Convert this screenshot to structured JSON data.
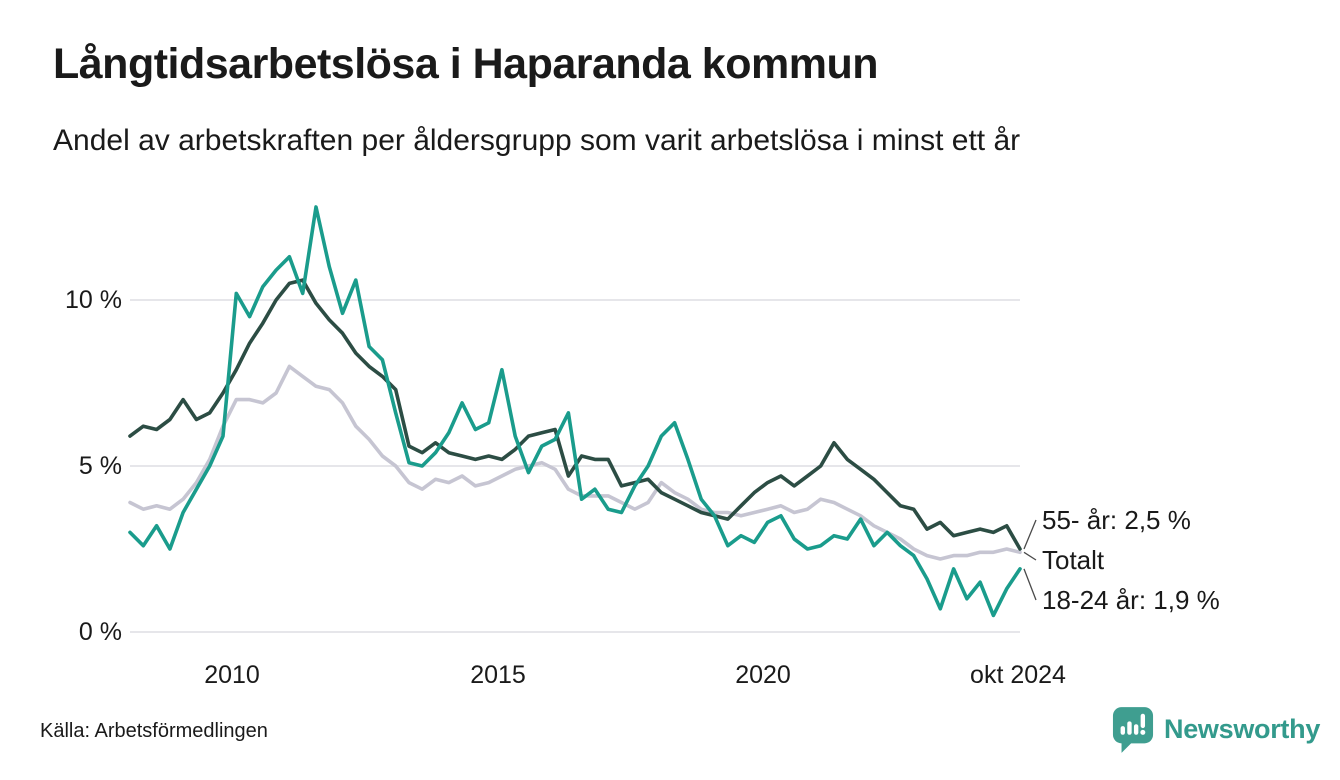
{
  "header": {
    "title": "Långtidsarbetslösa i Haparanda kommun",
    "subtitle": "Andel av arbetskraften per åldersgrupp som varit arbetslösa i minst ett år"
  },
  "chart_data": {
    "type": "line",
    "title": "Långtidsarbetslösa i Haparanda kommun",
    "subtitle": "Andel av arbetskraften per åldersgrupp som varit arbetslösa i minst ett år",
    "x_start_year": 2008.08,
    "x_step_years": 0.25,
    "ylim": [
      0,
      13.5
    ],
    "grid": true,
    "grid_color": "#e6e6ea",
    "leader_line_color": "#4a4a4a",
    "yticks": [
      {
        "label": "10 %",
        "value": 10
      },
      {
        "label": "5 %",
        "value": 5
      },
      {
        "label": "0 %",
        "value": 0
      }
    ],
    "xticks": [
      {
        "label": "2010",
        "year": 2010
      },
      {
        "label": "2015",
        "year": 2015
      },
      {
        "label": "2020",
        "year": 2020
      },
      {
        "label": "okt 2024",
        "year": 2024.79
      }
    ],
    "series": [
      {
        "name": "55- år",
        "end_label": "55- år: 2,5 %",
        "end_value": 2.5,
        "color": "#2c4d44",
        "values": [
          5.9,
          6.2,
          6.1,
          6.4,
          7.0,
          6.4,
          6.6,
          7.2,
          7.9,
          8.7,
          9.3,
          10.0,
          10.5,
          10.6,
          9.9,
          9.4,
          9.0,
          8.4,
          8.0,
          7.7,
          7.3,
          5.6,
          5.4,
          5.7,
          5.4,
          5.3,
          5.2,
          5.3,
          5.2,
          5.5,
          5.9,
          6.0,
          6.1,
          4.7,
          5.3,
          5.2,
          5.2,
          4.4,
          4.5,
          4.6,
          4.2,
          4.0,
          3.8,
          3.6,
          3.5,
          3.4,
          3.8,
          4.2,
          4.5,
          4.7,
          4.4,
          4.7,
          5.0,
          5.7,
          5.2,
          4.9,
          4.6,
          4.2,
          3.8,
          3.7,
          3.1,
          3.3,
          2.9,
          3.0,
          3.1,
          3.0,
          3.2,
          2.5
        ]
      },
      {
        "name": "Totalt",
        "end_label": "Totalt",
        "end_value": 2.4,
        "color": "#c6c5d2",
        "values": [
          3.9,
          3.7,
          3.8,
          3.7,
          4.0,
          4.5,
          5.2,
          6.2,
          7.0,
          7.0,
          6.9,
          7.2,
          8.0,
          7.7,
          7.4,
          7.3,
          6.9,
          6.2,
          5.8,
          5.3,
          5.0,
          4.5,
          4.3,
          4.6,
          4.5,
          4.7,
          4.4,
          4.5,
          4.7,
          4.9,
          5.0,
          5.1,
          4.9,
          4.3,
          4.1,
          4.1,
          4.1,
          3.9,
          3.7,
          3.9,
          4.5,
          4.2,
          4.0,
          3.7,
          3.6,
          3.6,
          3.5,
          3.6,
          3.7,
          3.8,
          3.6,
          3.7,
          4.0,
          3.9,
          3.7,
          3.5,
          3.2,
          3.0,
          2.8,
          2.5,
          2.3,
          2.2,
          2.3,
          2.3,
          2.4,
          2.4,
          2.5,
          2.4
        ]
      },
      {
        "name": "18-24 år",
        "end_label": "18-24 år: 1,9 %",
        "end_value": 1.9,
        "color": "#1a9c8c",
        "values": [
          3.0,
          2.6,
          3.2,
          2.5,
          3.6,
          4.3,
          5.0,
          5.9,
          10.2,
          9.5,
          10.4,
          10.9,
          11.3,
          10.2,
          12.8,
          11.0,
          9.6,
          10.6,
          8.6,
          8.2,
          6.6,
          5.1,
          5.0,
          5.4,
          6.0,
          6.9,
          6.1,
          6.3,
          7.9,
          5.9,
          4.8,
          5.6,
          5.8,
          6.6,
          4.0,
          4.3,
          3.7,
          3.6,
          4.4,
          5.0,
          5.9,
          6.3,
          5.2,
          4.0,
          3.5,
          2.6,
          2.9,
          2.7,
          3.3,
          3.5,
          2.8,
          2.5,
          2.6,
          2.9,
          2.8,
          3.4,
          2.6,
          3.0,
          2.6,
          2.3,
          1.6,
          0.7,
          1.9,
          1.0,
          1.5,
          0.5,
          1.3,
          1.9
        ]
      }
    ]
  },
  "footer": {
    "source": "Källa: Arbetsförmedlingen",
    "brand_name": "Newsworthy",
    "brand_color": "#339a8c",
    "brand_icon": "newsworthy-speech-bubble-bar-chart-icon"
  }
}
